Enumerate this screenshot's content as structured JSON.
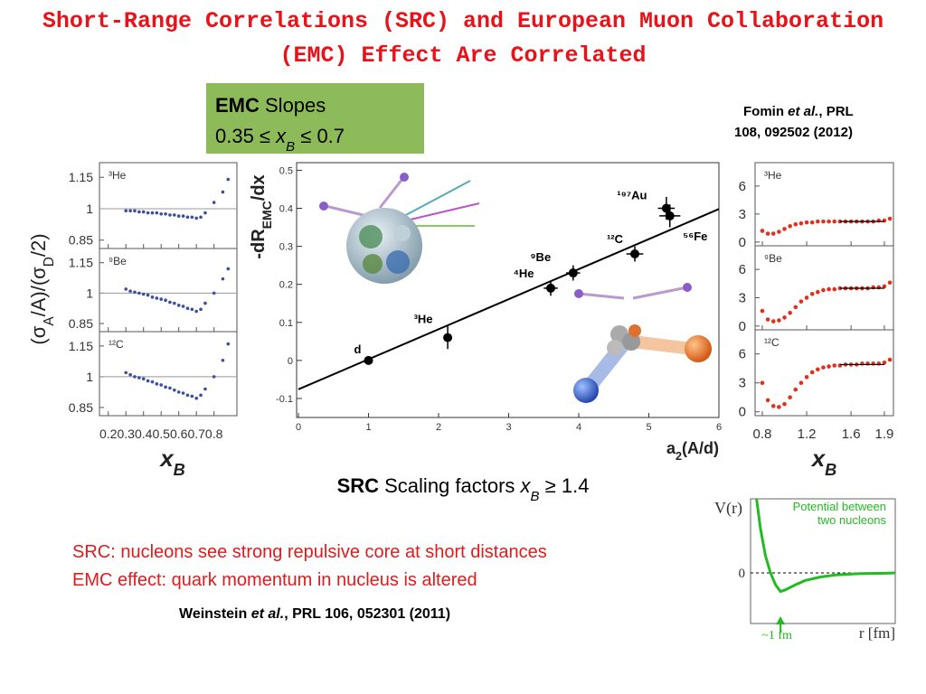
{
  "title_lines": [
    "Short-Range Correlations (SRC) and European Muon Collaboration",
    "(EMC) Effect Are Correlated"
  ],
  "emc_box": {
    "bold": "EMC",
    "rest": " Slopes",
    "line2_pre": "0.35 ≤ ",
    "var": "x",
    "sub": "B",
    "line2_post": " ≤ 0.7"
  },
  "fomin_ref": {
    "author": "Fomin ",
    "etal": "et al.",
    "rest": ", PRL",
    "line2": "108, 092502 (2012)"
  },
  "src_label": {
    "bold": "SRC",
    "rest": " Scaling factors ",
    "var": "x",
    "sub": "B",
    "post": " ≥ 1.4"
  },
  "notes": [
    "SRC: nucleons see strong repulsive core at short distances",
    "EMC effect: quark momentum in nucleus is altered"
  ],
  "weinstein_ref": {
    "author": "Weinstein ",
    "etal": "et al.",
    "rest": ", PRL 106, 052301 (2011)"
  },
  "chart_data": [
    {
      "type": "scatter",
      "xlabel": {
        "main": "a",
        "sub": "2",
        "post": "(A/d)"
      },
      "ylabel": {
        "main": "-dR",
        "sub": "EMC",
        "post": "/dx"
      },
      "labels": [
        "d",
        "³He",
        "⁴He",
        "⁹Be",
        "¹²C",
        "⁵⁶Fe",
        "¹⁹⁷Au"
      ],
      "x": [
        1,
        2.13,
        3.6,
        3.92,
        4.8,
        5.3,
        5.25
      ],
      "values": [
        0,
        0.06,
        0.19,
        0.23,
        0.28,
        0.38,
        0.4
      ],
      "xerr": [
        0,
        0,
        0.1,
        0.1,
        0.12,
        0.15,
        0.12
      ],
      "yerr": [
        0.01,
        0.03,
        0.02,
        0.02,
        0.02,
        0.03,
        0.03
      ],
      "color": "#000000",
      "fit_line": {
        "x": [
          0,
          6
        ],
        "values": [
          -0.076,
          0.398
        ]
      },
      "xlim": [
        0,
        6
      ],
      "ylim": [
        -0.15,
        0.52
      ],
      "xticks": [
        0,
        1,
        2,
        3,
        4,
        5,
        6
      ],
      "yticks": [
        -0.1,
        0,
        0.1,
        0.2,
        0.3,
        0.4,
        0.5
      ]
    },
    {
      "type": "ratio-panel",
      "label": "³He",
      "color": "#3a4fa0",
      "hline": 1,
      "x": [
        0.3,
        0.325,
        0.35,
        0.375,
        0.4,
        0.425,
        0.45,
        0.475,
        0.5,
        0.525,
        0.55,
        0.575,
        0.6,
        0.625,
        0.65,
        0.675,
        0.7,
        0.725,
        0.75,
        0.8,
        0.85,
        0.88
      ],
      "values": [
        0.99,
        0.99,
        0.99,
        0.985,
        0.985,
        0.98,
        0.98,
        0.98,
        0.975,
        0.975,
        0.97,
        0.97,
        0.965,
        0.965,
        0.96,
        0.96,
        0.955,
        0.96,
        0.98,
        1.03,
        1.08,
        1.14
      ],
      "xlim": [
        0.15,
        0.93
      ],
      "ylim": [
        0.81,
        1.22
      ],
      "xticks": [
        0.2,
        0.3,
        0.4,
        0.5,
        0.6,
        0.7,
        0.8
      ],
      "yticks": [
        0.85,
        1,
        1.15
      ]
    },
    {
      "type": "ratio-panel",
      "label": "⁹Be",
      "color": "#3a4fa0",
      "hline": 1,
      "ylabel": {
        "p1": "(σ",
        "s1": "A",
        "p2": "/A)/(σ",
        "s2": "D",
        "p3": "/2)"
      },
      "x": [
        0.3,
        0.325,
        0.35,
        0.375,
        0.4,
        0.425,
        0.45,
        0.475,
        0.5,
        0.525,
        0.55,
        0.575,
        0.6,
        0.625,
        0.65,
        0.675,
        0.7,
        0.725,
        0.75,
        0.8,
        0.85,
        0.88
      ],
      "values": [
        1.02,
        1.01,
        1.005,
        1.0,
        0.995,
        0.99,
        0.98,
        0.975,
        0.97,
        0.965,
        0.955,
        0.95,
        0.94,
        0.935,
        0.925,
        0.92,
        0.91,
        0.92,
        0.95,
        1.0,
        1.07,
        1.12
      ],
      "xlim": [
        0.15,
        0.93
      ],
      "ylim": [
        0.81,
        1.22
      ],
      "xticks": [
        0.2,
        0.3,
        0.4,
        0.5,
        0.6,
        0.7,
        0.8
      ],
      "yticks": [
        0.85,
        1,
        1.15
      ]
    },
    {
      "type": "ratio-panel",
      "label": "¹²C",
      "color": "#3a4fa0",
      "hline": 1,
      "xlabel": {
        "main": "x",
        "sub": "B"
      },
      "x": [
        0.3,
        0.325,
        0.35,
        0.375,
        0.4,
        0.425,
        0.45,
        0.475,
        0.5,
        0.525,
        0.55,
        0.575,
        0.6,
        0.625,
        0.65,
        0.675,
        0.7,
        0.725,
        0.75,
        0.8,
        0.85,
        0.88
      ],
      "values": [
        1.02,
        1.01,
        1.0,
        0.995,
        0.99,
        0.98,
        0.975,
        0.965,
        0.96,
        0.95,
        0.945,
        0.935,
        0.925,
        0.92,
        0.91,
        0.905,
        0.895,
        0.91,
        0.94,
        1.0,
        1.08,
        1.16
      ],
      "xlim": [
        0.15,
        0.93
      ],
      "ylim": [
        0.81,
        1.22
      ],
      "xticks": [
        0.2,
        0.3,
        0.4,
        0.5,
        0.6,
        0.7,
        0.8
      ],
      "yticks": [
        0.85,
        1,
        1.15
      ]
    },
    {
      "type": "ratio-panel",
      "label": "³He",
      "color": "#e03020",
      "plateau": {
        "x": [
          1.5,
          1.9
        ],
        "value": 2.2
      },
      "x": [
        0.8,
        0.85,
        0.9,
        0.95,
        1.0,
        1.05,
        1.1,
        1.15,
        1.2,
        1.25,
        1.3,
        1.35,
        1.4,
        1.45,
        1.5,
        1.55,
        1.6,
        1.65,
        1.7,
        1.75,
        1.8,
        1.85,
        1.9,
        1.95
      ],
      "values": [
        1.2,
        0.9,
        0.9,
        1.1,
        1.4,
        1.7,
        1.9,
        2.0,
        2.1,
        2.1,
        2.2,
        2.2,
        2.2,
        2.2,
        2.2,
        2.2,
        2.2,
        2.2,
        2.2,
        2.2,
        2.2,
        2.3,
        2.3,
        2.5
      ],
      "xlim": [
        0.735,
        1.982
      ],
      "ylim": [
        -0.4,
        8.5
      ],
      "xticks": [
        0.8,
        1.2,
        1.6,
        1.9
      ],
      "yticks": [
        0,
        3,
        6
      ]
    },
    {
      "type": "ratio-panel",
      "label": "⁹Be",
      "color": "#e03020",
      "plateau": {
        "x": [
          1.5,
          1.9
        ],
        "value": 4.0
      },
      "x": [
        0.8,
        0.85,
        0.9,
        0.95,
        1.0,
        1.05,
        1.1,
        1.15,
        1.2,
        1.25,
        1.3,
        1.35,
        1.4,
        1.45,
        1.5,
        1.55,
        1.6,
        1.65,
        1.7,
        1.75,
        1.8,
        1.85,
        1.9,
        1.95
      ],
      "values": [
        1.6,
        0.7,
        0.5,
        0.6,
        0.9,
        1.4,
        2.0,
        2.6,
        3.0,
        3.4,
        3.6,
        3.8,
        3.9,
        3.9,
        4.0,
        4.0,
        4.0,
        4.0,
        4.0,
        4.0,
        4.1,
        4.1,
        4.2,
        4.6
      ],
      "xlim": [
        0.735,
        1.982
      ],
      "ylim": [
        -0.4,
        8.5
      ],
      "xticks": [
        0.8,
        1.2,
        1.6,
        1.9
      ],
      "yticks": [
        0,
        3,
        6
      ]
    },
    {
      "type": "ratio-panel",
      "label": "¹²C",
      "color": "#e03020",
      "plateau": {
        "x": [
          1.5,
          1.9
        ],
        "value": 4.9
      },
      "xlabel": {
        "main": "x",
        "sub": "B"
      },
      "x": [
        0.8,
        0.85,
        0.9,
        0.95,
        1.0,
        1.05,
        1.1,
        1.15,
        1.2,
        1.25,
        1.3,
        1.35,
        1.4,
        1.45,
        1.5,
        1.55,
        1.6,
        1.65,
        1.7,
        1.75,
        1.8,
        1.85,
        1.9,
        1.95
      ],
      "values": [
        3.0,
        1.2,
        0.6,
        0.5,
        0.8,
        1.5,
        2.3,
        3.0,
        3.6,
        4.1,
        4.4,
        4.6,
        4.7,
        4.8,
        4.8,
        4.9,
        4.9,
        4.9,
        5.0,
        5.0,
        5.0,
        5.0,
        5.1,
        5.4
      ],
      "xlim": [
        0.735,
        1.982
      ],
      "ylim": [
        -0.4,
        8.5
      ],
      "xticks": [
        0.8,
        1.2,
        1.6,
        1.9
      ],
      "yticks": [
        0,
        3,
        6
      ]
    },
    {
      "type": "line",
      "color": "#22bb22",
      "ylabel": "V(r)",
      "xlabel": "r [fm]",
      "legend_lines": [
        "Potential between",
        "two nucleons"
      ],
      "annotation": {
        "text": "~1 fm",
        "x": 0.9
      },
      "x": [
        0.42,
        0.5,
        0.6,
        0.7,
        0.8,
        0.9,
        1.0,
        1.2,
        1.4,
        1.7,
        2.0,
        2.5,
        3.0,
        3.2
      ],
      "values": [
        2.2,
        1.3,
        0.5,
        0.0,
        -0.35,
        -0.55,
        -0.5,
        -0.35,
        -0.22,
        -0.12,
        -0.06,
        -0.02,
        -0.01,
        0
      ],
      "xlim": [
        0.3,
        3.2
      ],
      "ylim": [
        -1.5,
        2.2
      ],
      "yticks": [
        0
      ]
    }
  ]
}
